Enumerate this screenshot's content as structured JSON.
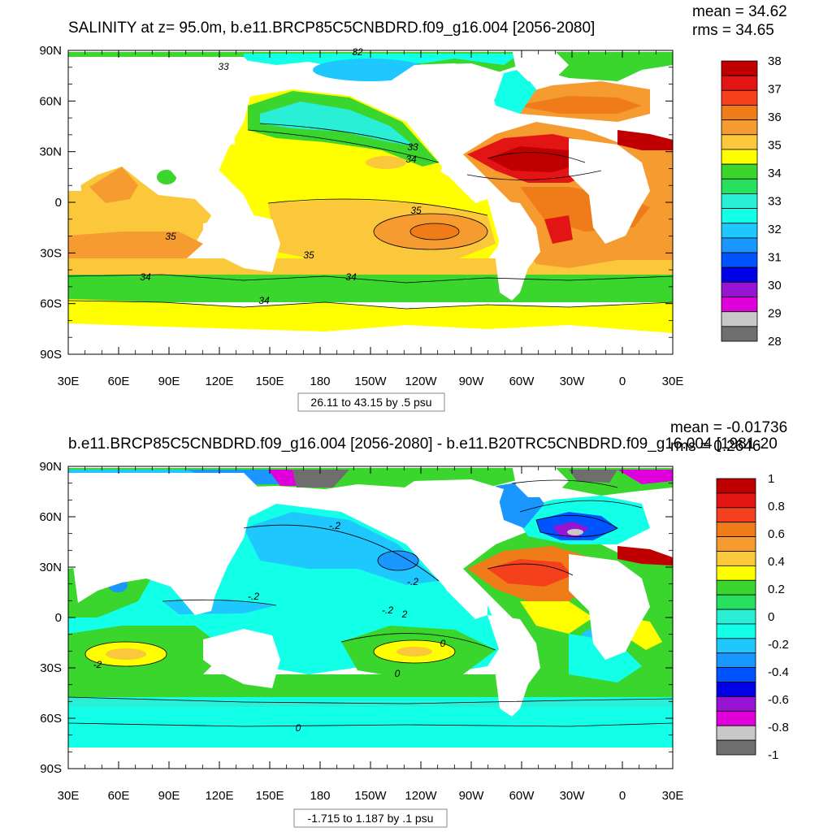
{
  "panels": [
    {
      "id": "salinity",
      "title": "SALINITY at z=  95.0m, b.e11.BRCP85C5CNBDRD.f09_g16.004 [2056-2080]",
      "mean_text": "mean = 34.62",
      "rms_text": "rms = 34.65",
      "range_text": "26.11 to 43.15 by .5 psu",
      "x_ticks": [
        "30E",
        "60E",
        "90E",
        "120E",
        "150E",
        "180",
        "150W",
        "120W",
        "90W",
        "60W",
        "30W",
        "0",
        "30E"
      ],
      "y_ticks": [
        "90N",
        "60N",
        "30N",
        "0",
        "30S",
        "60S",
        "90S"
      ],
      "colorbar": {
        "labels": [
          "38",
          "37",
          "36",
          "35",
          "34",
          "33",
          "32",
          "31",
          "30",
          "29",
          "28"
        ],
        "colors": [
          "#c00000",
          "#e31414",
          "#f5401e",
          "#ef7c18",
          "#f59b30",
          "#fac83a",
          "#ffff00",
          "#3ad62e",
          "#26e05e",
          "#28efd6",
          "#12ffe8",
          "#1ec8ff",
          "#1a96ff",
          "#0054ff",
          "#0000e6",
          "#9614d2",
          "#e000dc",
          "#c8c8c8",
          "#6e6e6e"
        ]
      },
      "contour_labels": [
        "32",
        "33",
        "33",
        "34",
        "35",
        "35",
        "35",
        "34",
        "34",
        "34"
      ]
    },
    {
      "id": "difference",
      "title": "b.e11.BRCP85C5CNBDRD.f09_g16.004 [2056-2080] - b.e11.B20TRC5CNBDRD.f09_g16.004 [1981-20",
      "mean_text": "mean = -0.01736",
      "rms_text": "rms = 0.2646",
      "range_text": "-1.715 to 1.187 by .1 psu",
      "x_ticks": [
        "30E",
        "60E",
        "90E",
        "120E",
        "150E",
        "180",
        "150W",
        "120W",
        "90W",
        "60W",
        "30W",
        "0",
        "30E"
      ],
      "y_ticks": [
        "90N",
        "60N",
        "30N",
        "0",
        "30S",
        "60S",
        "90S"
      ],
      "colorbar": {
        "labels": [
          "1",
          "0.8",
          "0.6",
          "0.4",
          "0.2",
          "0",
          "-0.2",
          "-0.4",
          "-0.6",
          "-0.8",
          "-1"
        ],
        "colors": [
          "#c00000",
          "#e31414",
          "#f5401e",
          "#ef7c18",
          "#f59b30",
          "#fac83a",
          "#ffff00",
          "#3ad62e",
          "#26e05e",
          "#28efd6",
          "#12ffe8",
          "#1ec8ff",
          "#1a96ff",
          "#0054ff",
          "#0000e6",
          "#9614d2",
          "#e000dc",
          "#c8c8c8",
          "#6e6e6e"
        ]
      },
      "contour_labels": [
        "-2",
        "-.2",
        "-.2",
        "-.2",
        "-.2",
        "2",
        "0",
        "0",
        "0"
      ]
    }
  ]
}
